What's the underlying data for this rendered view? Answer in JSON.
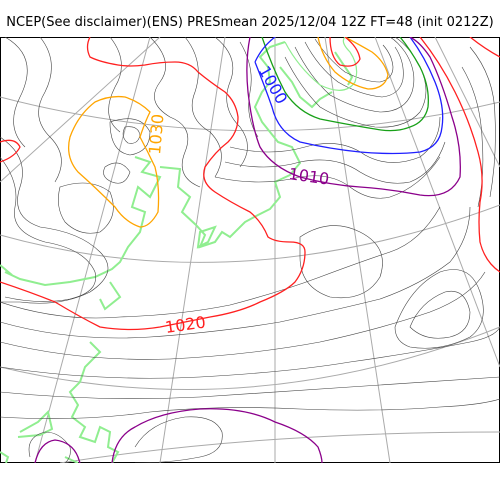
{
  "header": {
    "title": "NCEP(See disclaimer)(ENS) PRESmean 2025/12/04 12Z FT=48 (init 0212Z)"
  },
  "map": {
    "contour_labels": {
      "c1000": "1000",
      "c1010": "1010",
      "c1020": "1020",
      "c1030": "1030"
    },
    "colors": {
      "isobar": "#444444",
      "c1000": "#1f1fff",
      "c1010": "#8b008b",
      "c1020": "#ff2020",
      "c1030": "#ffa500",
      "green": "#18a018",
      "light_green": "#90ee90",
      "grid": "#aaaaaa"
    }
  }
}
